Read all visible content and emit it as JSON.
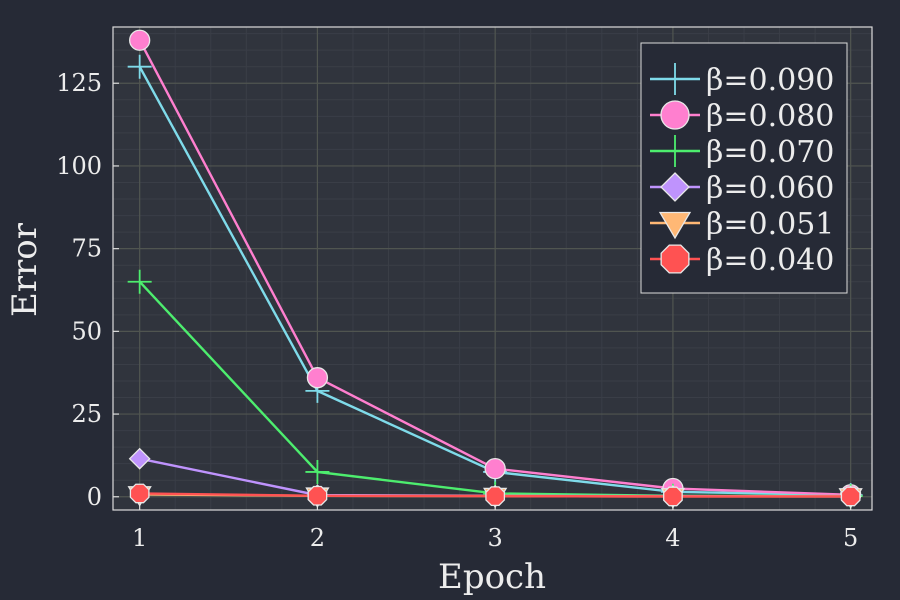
{
  "chart_data": {
    "type": "line",
    "title": "",
    "xlabel": "Epoch",
    "ylabel": "Error",
    "x": [
      1,
      2,
      3,
      4,
      5
    ],
    "xlim": [
      0.85,
      5.12
    ],
    "ylim": [
      -4,
      142
    ],
    "xticks": [
      1,
      2,
      3,
      4,
      5
    ],
    "yticks": [
      0,
      25,
      50,
      75,
      100,
      125
    ],
    "grid": true,
    "legend_position": "top-right",
    "series": [
      {
        "name": "β=0.090",
        "color": "#7fdbea",
        "marker": "cross",
        "values": [
          130,
          32,
          7.5,
          1.5,
          0.5
        ]
      },
      {
        "name": "β=0.080",
        "color": "#ff7fcf",
        "marker": "circle",
        "values": [
          138,
          36,
          8.5,
          2.5,
          0.6
        ]
      },
      {
        "name": "β=0.070",
        "color": "#4ded6e",
        "marker": "cross",
        "values": [
          65,
          7.5,
          1,
          0.3,
          0.2
        ]
      },
      {
        "name": "β=0.060",
        "color": "#bf93fd",
        "marker": "diamond",
        "values": [
          11.5,
          0.5,
          0.3,
          0.2,
          0.1
        ]
      },
      {
        "name": "β=0.051",
        "color": "#ffb875",
        "marker": "triangle-down",
        "values": [
          0.7,
          0.3,
          0.2,
          0.1,
          0.1
        ]
      },
      {
        "name": "β=0.040",
        "color": "#ff5252",
        "marker": "octagon",
        "values": [
          1,
          0.3,
          0.2,
          0.1,
          0.1
        ]
      }
    ]
  }
}
